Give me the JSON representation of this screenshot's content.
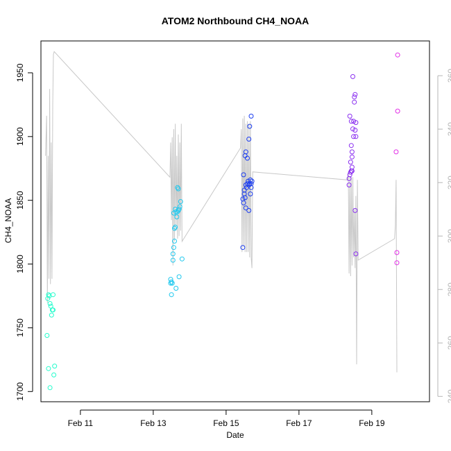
{
  "chart_data": {
    "type": "scatter",
    "title": "ATOM2 Northbound CH4_NOAA",
    "xlabel": "Date",
    "ylabel": "CH4_NOAA",
    "xlim": [
      "2017-02-09T22:00",
      "2017-02-20T14:00"
    ],
    "ylim": [
      1692,
      1975
    ],
    "x_ticks": [
      {
        "date": "2017-02-11",
        "label": "Feb 11"
      },
      {
        "date": "2017-02-13",
        "label": "Feb 13"
      },
      {
        "date": "2017-02-15",
        "label": "Feb 15"
      },
      {
        "date": "2017-02-17",
        "label": "Feb 17"
      },
      {
        "date": "2017-02-19",
        "label": "Feb 19"
      }
    ],
    "y_ticks": [
      1700,
      1750,
      1800,
      1850,
      1900,
      1950
    ],
    "y2lim": [
      238,
      373
    ],
    "y2_ticks": [
      240,
      260,
      280,
      300,
      320,
      340,
      360
    ],
    "grid": false,
    "points": [
      {
        "x": "2017-02-10T02:00",
        "y": 1744.0,
        "c": "#22fccc"
      },
      {
        "x": "2017-02-10T02:30",
        "y": 1773.0,
        "c": "#22fccc"
      },
      {
        "x": "2017-02-10T03:00",
        "y": 1776.0,
        "c": "#22fccc"
      },
      {
        "x": "2017-02-10T03:30",
        "y": 1775.0,
        "c": "#22fccc"
      },
      {
        "x": "2017-02-10T04:00",
        "y": 1769.0,
        "c": "#22fccc"
      },
      {
        "x": "2017-02-10T04:30",
        "y": 1767.0,
        "c": "#22fccc"
      },
      {
        "x": "2017-02-10T03:00",
        "y": 1718.0,
        "c": "#22fccc"
      },
      {
        "x": "2017-02-10T04:00",
        "y": 1703.0,
        "c": "#22fccc"
      },
      {
        "x": "2017-02-10T05:00",
        "y": 1760.0,
        "c": "#22fccc"
      },
      {
        "x": "2017-02-10T06:00",
        "y": 1764.0,
        "c": "#22fccc"
      },
      {
        "x": "2017-02-10T06:00",
        "y": 1776.0,
        "c": "#22fccc"
      },
      {
        "x": "2017-02-10T07:00",
        "y": 1720.0,
        "c": "#22fccc"
      },
      {
        "x": "2017-02-10T06:30",
        "y": 1713.0,
        "c": "#22fccc"
      },
      {
        "x": "2017-02-10T05:30",
        "y": 1764.0,
        "c": "#22fccc"
      },
      {
        "x": "2017-02-13T11:30",
        "y": 1785.0,
        "c": "#1ec8ee"
      },
      {
        "x": "2017-02-13T11:30",
        "y": 1788.0,
        "c": "#1ec8ee"
      },
      {
        "x": "2017-02-13T12:00",
        "y": 1786.0,
        "c": "#1ec8ee"
      },
      {
        "x": "2017-02-13T12:00",
        "y": 1776.0,
        "c": "#1ec8ee"
      },
      {
        "x": "2017-02-13T12:30",
        "y": 1785.0,
        "c": "#1ec8ee"
      },
      {
        "x": "2017-02-13T13:00",
        "y": 1803.0,
        "c": "#1ec8ee"
      },
      {
        "x": "2017-02-13T13:00",
        "y": 1808.0,
        "c": "#1ec8ee"
      },
      {
        "x": "2017-02-13T13:30",
        "y": 1813.0,
        "c": "#1ec8ee"
      },
      {
        "x": "2017-02-13T14:00",
        "y": 1818.0,
        "c": "#1ec8ee"
      },
      {
        "x": "2017-02-13T14:00",
        "y": 1828.0,
        "c": "#1ec8ee"
      },
      {
        "x": "2017-02-13T14:30",
        "y": 1829.0,
        "c": "#1ec8ee"
      },
      {
        "x": "2017-02-13T13:30",
        "y": 1840.0,
        "c": "#1ec8ee"
      },
      {
        "x": "2017-02-13T14:30",
        "y": 1843.0,
        "c": "#1ec8ee"
      },
      {
        "x": "2017-02-13T15:00",
        "y": 1841.0,
        "c": "#1ec8ee"
      },
      {
        "x": "2017-02-13T15:30",
        "y": 1837.0,
        "c": "#1ec8ee"
      },
      {
        "x": "2017-02-13T16:00",
        "y": 1841.0,
        "c": "#1ec8ee"
      },
      {
        "x": "2017-02-13T16:30",
        "y": 1842.0,
        "c": "#1ec8ee"
      },
      {
        "x": "2017-02-13T17:00",
        "y": 1843.0,
        "c": "#1ec8ee"
      },
      {
        "x": "2017-02-13T17:30",
        "y": 1845.0,
        "c": "#1ec8ee"
      },
      {
        "x": "2017-02-13T18:00",
        "y": 1849.0,
        "c": "#1ec8ee"
      },
      {
        "x": "2017-02-13T16:30",
        "y": 1859.0,
        "c": "#1ec8ee"
      },
      {
        "x": "2017-02-13T16:00",
        "y": 1860.0,
        "c": "#1ec8ee"
      },
      {
        "x": "2017-02-13T15:00",
        "y": 1781.0,
        "c": "#1ec8ee"
      },
      {
        "x": "2017-02-13T17:00",
        "y": 1790.0,
        "c": "#1ec8ee"
      },
      {
        "x": "2017-02-13T19:00",
        "y": 1804.0,
        "c": "#1ec8ee"
      },
      {
        "x": "2017-02-15T11:00",
        "y": 1813.0,
        "c": "#1a3cf0"
      },
      {
        "x": "2017-02-15T11:00",
        "y": 1851.0,
        "c": "#1a3cf0"
      },
      {
        "x": "2017-02-15T11:30",
        "y": 1848.0,
        "c": "#1a3cf0"
      },
      {
        "x": "2017-02-15T11:30",
        "y": 1870.0,
        "c": "#1a3cf0"
      },
      {
        "x": "2017-02-15T12:00",
        "y": 1855.0,
        "c": "#1a3cf0"
      },
      {
        "x": "2017-02-15T12:00",
        "y": 1858.0,
        "c": "#1a3cf0"
      },
      {
        "x": "2017-02-15T12:30",
        "y": 1852.0,
        "c": "#1a3cf0"
      },
      {
        "x": "2017-02-15T13:00",
        "y": 1844.0,
        "c": "#1a3cf0"
      },
      {
        "x": "2017-02-15T13:00",
        "y": 1862.0,
        "c": "#1a3cf0"
      },
      {
        "x": "2017-02-15T13:30",
        "y": 1860.0,
        "c": "#1a3cf0"
      },
      {
        "x": "2017-02-15T12:30",
        "y": 1885.0,
        "c": "#1a3cf0"
      },
      {
        "x": "2017-02-15T13:00",
        "y": 1888.0,
        "c": "#1a3cf0"
      },
      {
        "x": "2017-02-15T14:00",
        "y": 1883.0,
        "c": "#1a3cf0"
      },
      {
        "x": "2017-02-15T14:00",
        "y": 1863.0,
        "c": "#1a3cf0"
      },
      {
        "x": "2017-02-15T14:30",
        "y": 1865.0,
        "c": "#1a3cf0"
      },
      {
        "x": "2017-02-15T15:00",
        "y": 1862.0,
        "c": "#1a3cf0"
      },
      {
        "x": "2017-02-15T15:00",
        "y": 1842.0,
        "c": "#1a3cf0"
      },
      {
        "x": "2017-02-15T15:00",
        "y": 1898.0,
        "c": "#1a3cf0"
      },
      {
        "x": "2017-02-15T15:30",
        "y": 1908.0,
        "c": "#1a3cf0"
      },
      {
        "x": "2017-02-15T15:30",
        "y": 1863.0,
        "c": "#1a3cf0"
      },
      {
        "x": "2017-02-15T16:00",
        "y": 1866.0,
        "c": "#1a3cf0"
      },
      {
        "x": "2017-02-15T16:00",
        "y": 1855.0,
        "c": "#1a3cf0"
      },
      {
        "x": "2017-02-15T16:30",
        "y": 1863.0,
        "c": "#1a3cf0"
      },
      {
        "x": "2017-02-15T16:30",
        "y": 1860.0,
        "c": "#1a3cf0"
      },
      {
        "x": "2017-02-15T17:00",
        "y": 1865.0,
        "c": "#1a3cf0"
      },
      {
        "x": "2017-02-15T16:30",
        "y": 1916.0,
        "c": "#1a3cf0"
      },
      {
        "x": "2017-02-18T09:00",
        "y": 1862.0,
        "c": "#8a2ef0"
      },
      {
        "x": "2017-02-18T09:00",
        "y": 1867.0,
        "c": "#8a2ef0"
      },
      {
        "x": "2017-02-18T09:30",
        "y": 1870.0,
        "c": "#8a2ef0"
      },
      {
        "x": "2017-02-18T10:00",
        "y": 1872.0,
        "c": "#8a2ef0"
      },
      {
        "x": "2017-02-18T10:30",
        "y": 1873.0,
        "c": "#8a2ef0"
      },
      {
        "x": "2017-02-18T11:00",
        "y": 1876.0,
        "c": "#8a2ef0"
      },
      {
        "x": "2017-02-18T11:00",
        "y": 1873.0,
        "c": "#8a2ef0"
      },
      {
        "x": "2017-02-18T10:00",
        "y": 1880.0,
        "c": "#8a2ef0"
      },
      {
        "x": "2017-02-18T11:00",
        "y": 1884.0,
        "c": "#8a2ef0"
      },
      {
        "x": "2017-02-18T11:00",
        "y": 1888.0,
        "c": "#8a2ef0"
      },
      {
        "x": "2017-02-18T10:30",
        "y": 1893.0,
        "c": "#8a2ef0"
      },
      {
        "x": "2017-02-18T12:00",
        "y": 1900.0,
        "c": "#8a2ef0"
      },
      {
        "x": "2017-02-18T09:30",
        "y": 1916.0,
        "c": "#8a2ef0"
      },
      {
        "x": "2017-02-18T10:30",
        "y": 1912.0,
        "c": "#8a2ef0"
      },
      {
        "x": "2017-02-18T11:30",
        "y": 1906.0,
        "c": "#8a2ef0"
      },
      {
        "x": "2017-02-18T12:00",
        "y": 1912.0,
        "c": "#8a2ef0"
      },
      {
        "x": "2017-02-18T13:00",
        "y": 1905.0,
        "c": "#8a2ef0"
      },
      {
        "x": "2017-02-18T13:30",
        "y": 1911.0,
        "c": "#8a2ef0"
      },
      {
        "x": "2017-02-18T13:30",
        "y": 1900.0,
        "c": "#8a2ef0"
      },
      {
        "x": "2017-02-18T11:30",
        "y": 1947.0,
        "c": "#8a2ef0"
      },
      {
        "x": "2017-02-18T12:30",
        "y": 1931.0,
        "c": "#8a2ef0"
      },
      {
        "x": "2017-02-18T13:00",
        "y": 1933.0,
        "c": "#8a2ef0"
      },
      {
        "x": "2017-02-18T12:30",
        "y": 1927.0,
        "c": "#8a2ef0"
      },
      {
        "x": "2017-02-18T13:00",
        "y": 1842.0,
        "c": "#8a2ef0"
      },
      {
        "x": "2017-02-18T13:30",
        "y": 1808.0,
        "c": "#8a2ef0"
      },
      {
        "x": "2017-02-19T17:00",
        "y": 1964.0,
        "c": "#e22ee6"
      },
      {
        "x": "2017-02-19T17:00",
        "y": 1920.0,
        "c": "#e22ee6"
      },
      {
        "x": "2017-02-19T16:00",
        "y": 1888.0,
        "c": "#e22ee6"
      },
      {
        "x": "2017-02-19T16:30",
        "y": 1809.0,
        "c": "#e22ee6"
      },
      {
        "x": "2017-02-19T16:30",
        "y": 1801.0,
        "c": "#e22ee6"
      }
    ],
    "secondary_series": {
      "color": "#c8c8c8",
      "axis": "right",
      "line": [
        [
          "2017-02-10T01:00",
          330
        ],
        [
          "2017-02-10T01:45",
          345
        ],
        [
          "2017-02-10T02:15",
          275
        ],
        [
          "2017-02-10T02:45",
          330
        ],
        [
          "2017-02-10T03:15",
          284
        ],
        [
          "2017-02-10T03:45",
          355
        ],
        [
          "2017-02-10T04:15",
          282
        ],
        [
          "2017-02-10T04:45",
          335
        ],
        [
          "2017-02-10T05:15",
          284
        ],
        [
          "2017-02-10T05:45",
          349
        ],
        [
          "2017-02-10T06:15",
          368
        ],
        [
          "2017-02-10T06:45",
          369
        ],
        [
          "2017-02-13T11:00",
          322
        ],
        [
          "2017-02-13T11:30",
          335
        ],
        [
          "2017-02-13T12:00",
          306
        ],
        [
          "2017-02-13T12:30",
          337
        ],
        [
          "2017-02-13T13:00",
          289
        ],
        [
          "2017-02-13T13:30",
          340
        ],
        [
          "2017-02-13T14:00",
          298
        ],
        [
          "2017-02-13T14:30",
          342
        ],
        [
          "2017-02-13T15:00",
          302
        ],
        [
          "2017-02-13T15:30",
          330
        ],
        [
          "2017-02-13T16:00",
          299
        ],
        [
          "2017-02-13T16:30",
          338
        ],
        [
          "2017-02-13T17:00",
          300
        ],
        [
          "2017-02-13T17:30",
          335
        ],
        [
          "2017-02-13T18:00",
          302
        ],
        [
          "2017-02-13T18:30",
          342
        ],
        [
          "2017-02-13T19:00",
          298
        ],
        [
          "2017-02-15T09:30",
          333
        ],
        [
          "2017-02-15T10:00",
          340
        ],
        [
          "2017-02-15T10:30",
          294
        ],
        [
          "2017-02-15T11:00",
          344
        ],
        [
          "2017-02-15T11:30",
          296
        ],
        [
          "2017-02-15T12:00",
          345
        ],
        [
          "2017-02-15T12:30",
          294
        ],
        [
          "2017-02-15T13:00",
          342
        ],
        [
          "2017-02-15T13:30",
          294
        ],
        [
          "2017-02-15T14:00",
          343
        ],
        [
          "2017-02-15T14:30",
          294
        ],
        [
          "2017-02-15T15:00",
          342
        ],
        [
          "2017-02-15T15:30",
          292
        ],
        [
          "2017-02-15T16:00",
          343
        ],
        [
          "2017-02-15T16:30",
          292
        ],
        [
          "2017-02-15T17:00",
          288
        ],
        [
          "2017-02-15T17:30",
          324
        ],
        [
          "2017-02-18T08:00",
          321
        ],
        [
          "2017-02-18T08:30",
          324
        ],
        [
          "2017-02-18T09:00",
          286
        ],
        [
          "2017-02-18T09:30",
          322
        ],
        [
          "2017-02-18T10:00",
          285
        ],
        [
          "2017-02-18T10:30",
          322
        ],
        [
          "2017-02-18T11:00",
          289
        ],
        [
          "2017-02-18T11:30",
          322
        ],
        [
          "2017-02-18T12:00",
          292
        ],
        [
          "2017-02-18T12:30",
          310
        ],
        [
          "2017-02-18T13:00",
          288
        ],
        [
          "2017-02-18T13:30",
          315
        ],
        [
          "2017-02-18T14:00",
          252
        ],
        [
          "2017-02-18T14:30",
          321
        ],
        [
          "2017-02-18T15:00",
          291
        ],
        [
          "2017-02-19T15:00",
          299
        ],
        [
          "2017-02-19T15:30",
          304
        ],
        [
          "2017-02-19T16:00",
          321
        ],
        [
          "2017-02-19T16:30",
          249
        ]
      ]
    }
  }
}
